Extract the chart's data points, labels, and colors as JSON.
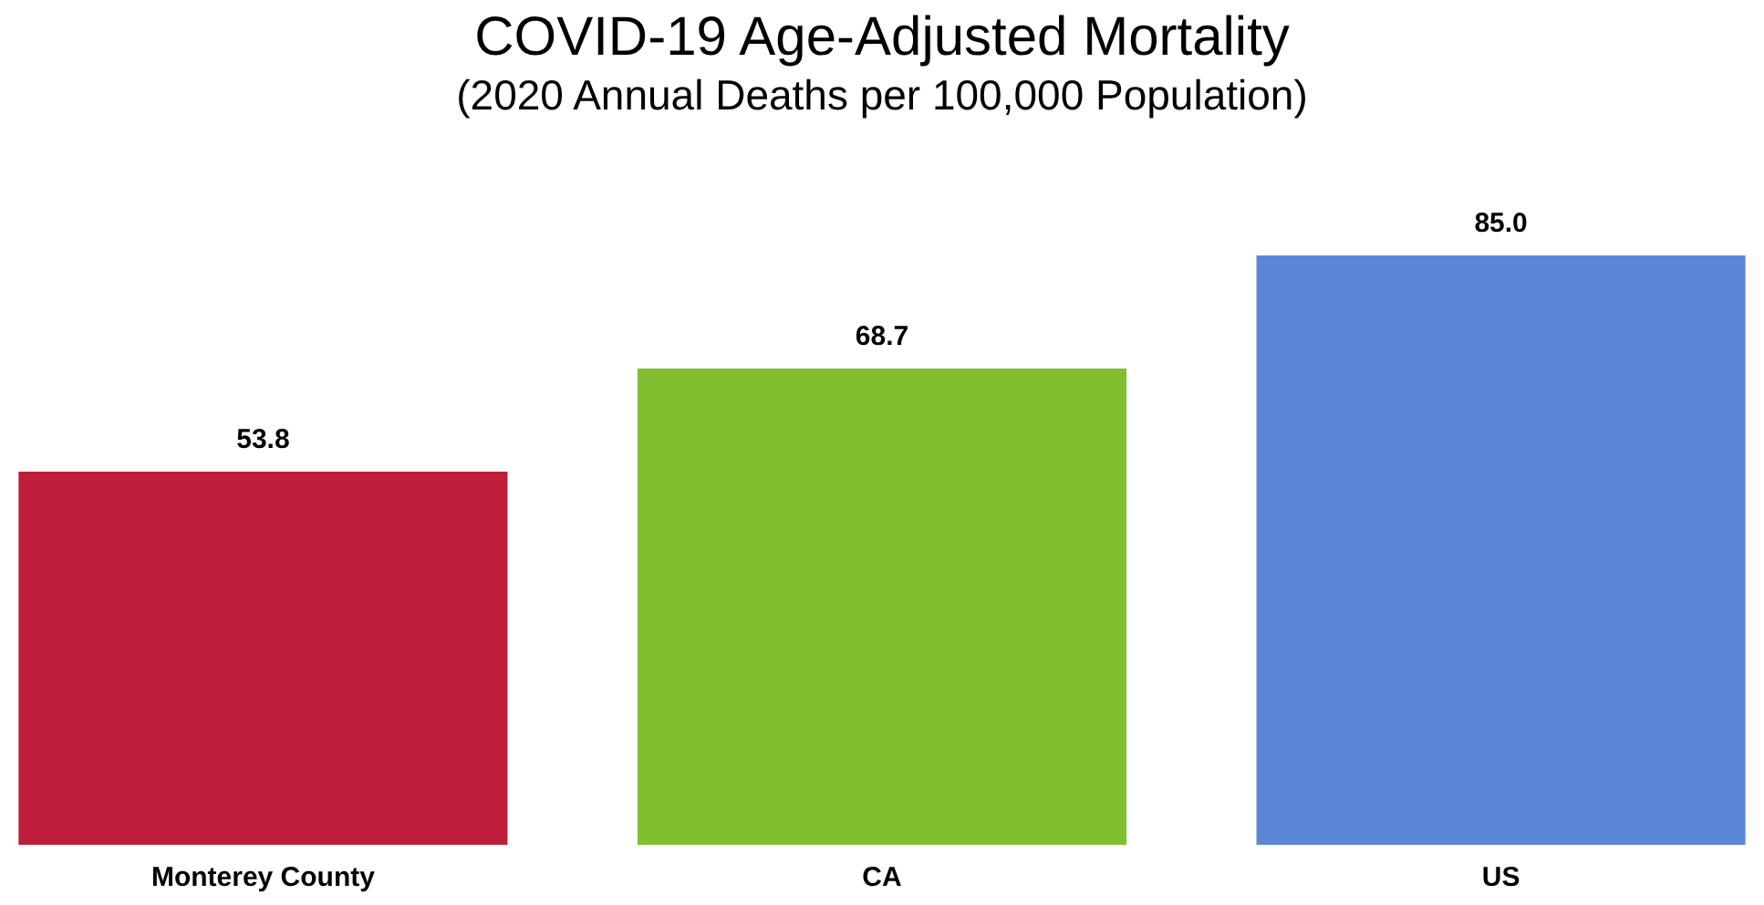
{
  "chart_data": {
    "type": "bar",
    "title": "COVID-19 Age-Adjusted Mortality",
    "subtitle": "(2020 Annual Deaths per 100,000 Population)",
    "categories": [
      "Monterey County",
      "CA",
      "US"
    ],
    "values": [
      53.8,
      68.7,
      85.0
    ],
    "colors": [
      "#be1e3a",
      "#80bf30",
      "#5b87d6"
    ],
    "value_labels": [
      "53.8",
      "68.7",
      "85.0"
    ]
  }
}
